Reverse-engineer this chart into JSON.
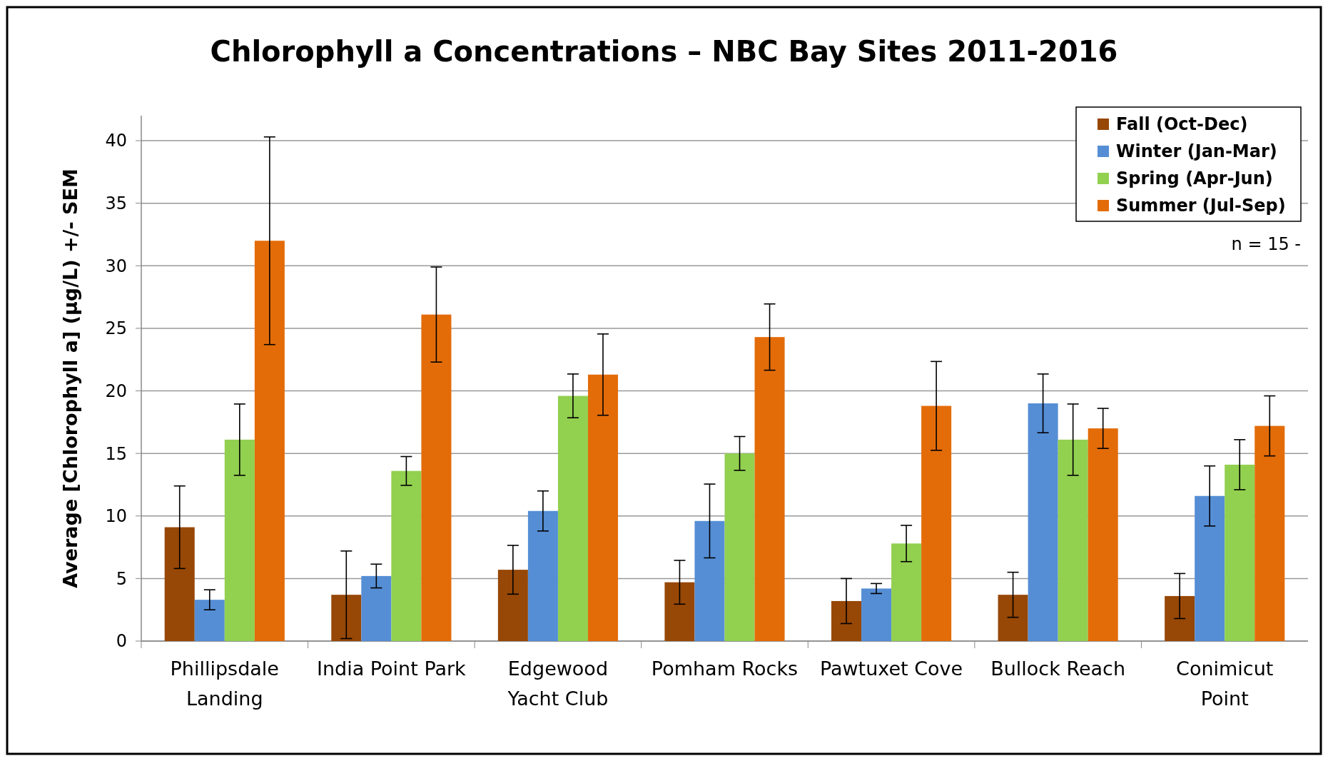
{
  "chart_data": {
    "type": "bar",
    "title": "Chlorophyll a Concentrations – NBC Bay Sites 2011-2016",
    "ylabel": "Average [Chlorophyll a] (µg/L) +/- SEM",
    "categories": [
      [
        "Phillipsdale",
        "Landing"
      ],
      [
        "India Point Park"
      ],
      [
        "Edgewood",
        "Yacht Club"
      ],
      [
        "Pomham Rocks"
      ],
      [
        "Pawtuxet Cove"
      ],
      [
        "Bullock Reach"
      ],
      [
        "Conimicut",
        "Point"
      ]
    ],
    "series": [
      {
        "name": "Fall (Oct-Dec)",
        "color": "#974706",
        "values": [
          9.1,
          3.7,
          5.7,
          4.7,
          3.2,
          3.7,
          3.6
        ],
        "errors": [
          3.3,
          3.5,
          1.95,
          1.75,
          1.8,
          1.8,
          1.8
        ]
      },
      {
        "name": "Winter (Jan-Mar)",
        "color": "#558ed5",
        "values": [
          3.3,
          5.2,
          10.4,
          9.6,
          4.2,
          19.0,
          11.6
        ],
        "errors": [
          0.8,
          0.95,
          1.6,
          2.95,
          0.4,
          2.35,
          2.4
        ]
      },
      {
        "name": "Spring (Apr-Jun)",
        "color": "#92d050",
        "values": [
          16.1,
          13.6,
          19.6,
          15.0,
          7.8,
          16.1,
          14.1
        ],
        "errors": [
          2.85,
          1.15,
          1.75,
          1.35,
          1.45,
          2.85,
          2.0
        ]
      },
      {
        "name": "Summer (Jul-Sep)",
        "color": "#e36c09",
        "values": [
          32.0,
          26.1,
          21.3,
          24.3,
          18.8,
          17.0,
          17.2
        ],
        "errors": [
          8.3,
          3.8,
          3.25,
          2.65,
          3.55,
          1.6,
          2.4
        ]
      }
    ],
    "ylim": [
      0,
      42
    ],
    "yticks": [
      0,
      5,
      10,
      15,
      20,
      25,
      30,
      35,
      40
    ],
    "grid": "y",
    "legend": "top right",
    "annotations": [
      "n = 15 -"
    ]
  }
}
